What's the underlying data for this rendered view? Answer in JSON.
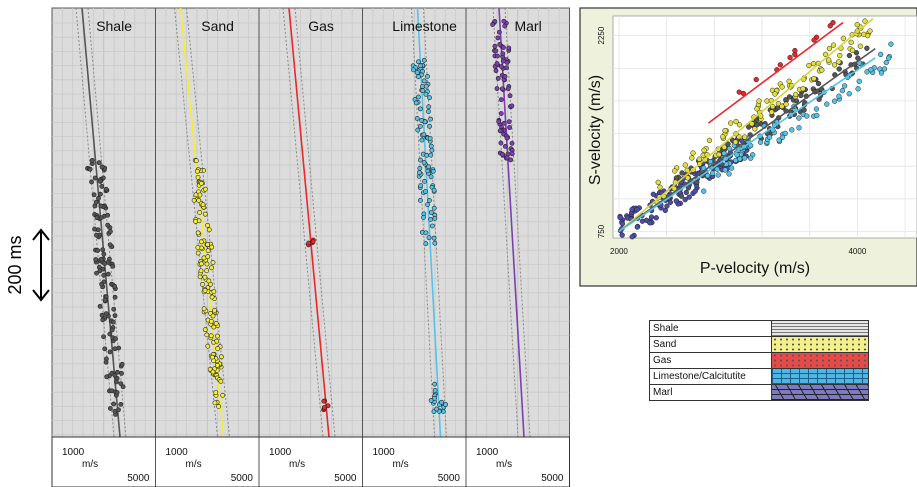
{
  "chart_data": [
    {
      "type": "scatter",
      "panel": "velocity-depth-tracks",
      "tracks": [
        {
          "name": "Shale",
          "color": "#555555",
          "axis_min": "1000",
          "axis_unit": "m/s",
          "axis_max": "5000"
        },
        {
          "name": "Sand",
          "color": "#f2ee3a",
          "axis_min": "1000",
          "axis_unit": "m/s",
          "axis_max": "5000"
        },
        {
          "name": "Gas",
          "color": "#e8282a",
          "axis_min": "1000",
          "axis_unit": "m/s",
          "axis_max": "5000"
        },
        {
          "name": "Limestone",
          "color": "#55c3e8",
          "axis_min": "1000",
          "axis_unit": "m/s",
          "axis_max": "5000"
        },
        {
          "name": "Marl",
          "color": "#7b3fb0",
          "axis_min": "1000",
          "axis_unit": "m/s",
          "axis_max": "5000"
        }
      ],
      "time_scale_label": "200 ms",
      "grid": true
    },
    {
      "type": "scatter",
      "panel": "vp-vs-crossplot",
      "xlabel": "P-velocity (m/s)",
      "ylabel": "S-velocity (m/s)",
      "xlim": [
        1950,
        4500
      ],
      "ylim": [
        700,
        2400
      ],
      "x_ticks": [
        "2000",
        "4000"
      ],
      "y_ticks": [
        "750",
        "2250"
      ],
      "trend_lines": [
        {
          "color": "#e8282a",
          "x": [
            2750,
            3880
          ],
          "y": [
            1580,
            2350
          ]
        },
        {
          "color": "#d8d43a",
          "x": [
            2000,
            4130
          ],
          "y": [
            750,
            2380
          ]
        },
        {
          "color": "#555555",
          "x": [
            2000,
            4150
          ],
          "y": [
            750,
            2150
          ]
        },
        {
          "color": "#55c3e8",
          "x": [
            2000,
            4150
          ],
          "y": [
            750,
            2080
          ]
        }
      ],
      "grid": true,
      "background": "#eef2dd"
    }
  ],
  "legend": [
    {
      "label": "Shale",
      "pattern": "hlines"
    },
    {
      "label": "Sand",
      "pattern": "dots",
      "color": "#f3f08a"
    },
    {
      "label": "Gas",
      "pattern": "dots",
      "color": "#e84a4a"
    },
    {
      "label": "Limestone/Calcitutite",
      "pattern": "bricks",
      "color": "#4fb6e4"
    },
    {
      "label": "Marl",
      "pattern": "slashes",
      "color": "#7d7ac0"
    }
  ]
}
